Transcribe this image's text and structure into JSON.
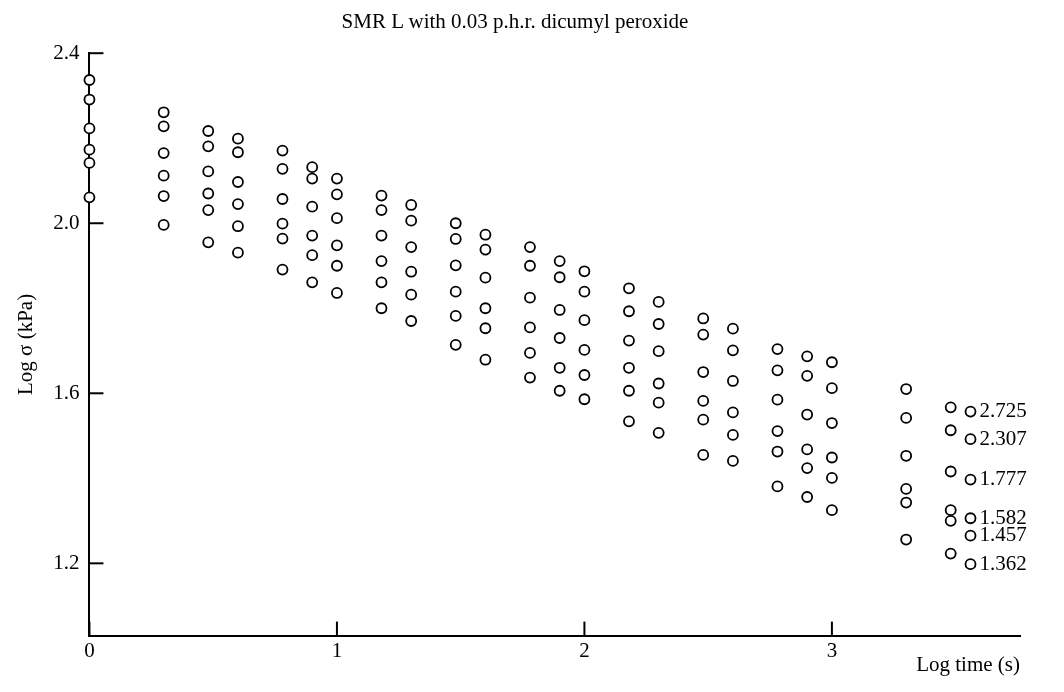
{
  "chart_data": {
    "type": "scatter",
    "title": "SMR L with 0.03 p.h.r. dicumyl peroxide",
    "xlabel": "Log time (s)",
    "ylabel": "Log σ (kPa)",
    "x": [
      0,
      0.3,
      0.48,
      0.6,
      0.78,
      0.9,
      1.0,
      1.18,
      1.3,
      1.48,
      1.6,
      1.78,
      1.9,
      2.0,
      2.18,
      2.3,
      2.48,
      2.6,
      2.78,
      2.9,
      3.0,
      3.3,
      3.48,
      3.56
    ],
    "xlim": [
      0,
      3.76
    ],
    "xticks": [
      0,
      1,
      2,
      3
    ],
    "ylim": [
      1.03,
      2.4
    ],
    "yticks": [
      1.2,
      1.6,
      {
        "value": 2,
        "label": "2.0"
      },
      2.4
    ],
    "grid": false,
    "legend": false,
    "marker": "circle",
    "series": [
      {
        "name": "2.725",
        "color": "#000000",
        "values": [
          2.337,
          2.261,
          2.217,
          2.199,
          2.171,
          2.132,
          2.105,
          2.065,
          2.043,
          2.0,
          1.973,
          1.944,
          1.911,
          1.887,
          1.847,
          1.815,
          1.776,
          1.752,
          1.704,
          1.687,
          1.673,
          1.61,
          1.567,
          1.557
        ]
      },
      {
        "name": "2.307",
        "color": "#000000",
        "values": [
          2.291,
          2.228,
          2.181,
          2.167,
          2.128,
          2.105,
          2.068,
          2.031,
          2.006,
          1.963,
          1.938,
          1.9,
          1.873,
          1.839,
          1.793,
          1.763,
          1.738,
          1.701,
          1.654,
          1.641,
          1.612,
          1.542,
          1.513,
          1.492
        ]
      },
      {
        "name": "1.777",
        "color": "#000000",
        "values": [
          2.223,
          2.165,
          2.122,
          2.097,
          2.057,
          2.039,
          2.012,
          1.971,
          1.944,
          1.901,
          1.872,
          1.825,
          1.796,
          1.772,
          1.724,
          1.699,
          1.65,
          1.629,
          1.585,
          1.55,
          1.53,
          1.453,
          1.416,
          1.397
        ]
      },
      {
        "name": "1.582",
        "color": "#000000",
        "values": [
          2.173,
          2.112,
          2.07,
          2.045,
          1.999,
          1.971,
          1.948,
          1.911,
          1.886,
          1.839,
          1.8,
          1.755,
          1.73,
          1.702,
          1.66,
          1.623,
          1.582,
          1.555,
          1.511,
          1.468,
          1.449,
          1.375,
          1.325,
          1.306
        ]
      },
      {
        "name": "1.457",
        "color": "#000000",
        "values": [
          2.142,
          2.064,
          2.031,
          1.993,
          1.964,
          1.925,
          1.9,
          1.861,
          1.832,
          1.782,
          1.753,
          1.695,
          1.66,
          1.643,
          1.606,
          1.578,
          1.538,
          1.502,
          1.463,
          1.424,
          1.401,
          1.343,
          1.3,
          1.265
        ]
      },
      {
        "name": "1.362",
        "color": "#000000",
        "values": [
          2.061,
          1.996,
          1.955,
          1.931,
          1.891,
          1.861,
          1.836,
          1.8,
          1.77,
          1.714,
          1.679,
          1.637,
          1.606,
          1.586,
          1.534,
          1.507,
          1.455,
          1.441,
          1.381,
          1.356,
          1.325,
          1.256,
          1.223,
          1.198
        ]
      }
    ]
  }
}
